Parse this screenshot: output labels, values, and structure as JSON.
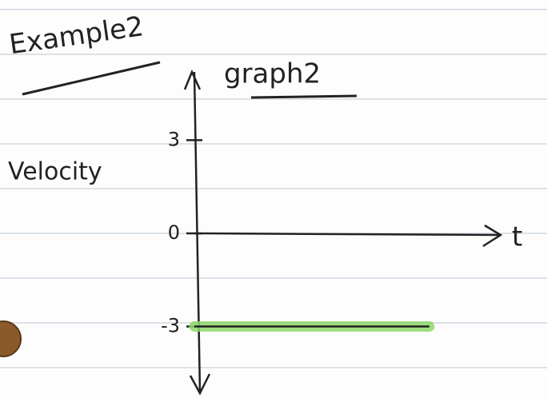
{
  "chart_data": {
    "type": "line",
    "title": "graph2",
    "heading": "Example2",
    "y_label": "Velocity",
    "x_label": "t",
    "x": [
      0,
      1
    ],
    "series": [
      {
        "color": "#8fd66a",
        "values": [
          -3,
          -3
        ]
      }
    ],
    "xlim": [
      0,
      1.3
    ],
    "ylim": [
      -5.1,
      5.2
    ],
    "yticks": [
      3,
      0,
      -3
    ]
  }
}
